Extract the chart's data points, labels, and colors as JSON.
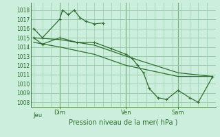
{
  "background_color": "#cceedd",
  "grid_color": "#99ccaa",
  "line_color": "#2d6e2d",
  "text_color": "#2d6e2d",
  "xlabel": "Pression niveau de la mer( hPa )",
  "yticks": [
    1008,
    1009,
    1010,
    1011,
    1012,
    1013,
    1014,
    1015,
    1016,
    1017,
    1018
  ],
  "ylim": [
    1007.5,
    1018.8
  ],
  "day_labels": [
    "Jeu",
    "Dim",
    "Ven",
    "Sam"
  ],
  "vline_positions": [
    9,
    32,
    50
  ],
  "series1_x": [
    0,
    3,
    9,
    10,
    12,
    14,
    16,
    18,
    21,
    24
  ],
  "series1_y": [
    1016,
    1015,
    1017,
    1018,
    1017.5,
    1018,
    1017.2,
    1016.8,
    1016.5,
    1016.6
  ],
  "series2_x": [
    0,
    3,
    9,
    15,
    21,
    27,
    32,
    34,
    36,
    38,
    40,
    43,
    46,
    50,
    54,
    57,
    62
  ],
  "series2_y": [
    1015,
    1014.3,
    1015,
    1014.5,
    1014.5,
    1013.8,
    1013.2,
    1012.8,
    1012.0,
    1011.2,
    1009.5,
    1008.5,
    1008.3,
    1009.3,
    1008.5,
    1008.0,
    1010.8
  ],
  "series3_x": [
    0,
    9,
    21,
    32,
    50,
    62
  ],
  "series3_y": [
    1015,
    1014.8,
    1014.2,
    1013.0,
    1011.2,
    1010.8
  ],
  "series4_x": [
    0,
    9,
    21,
    32,
    50,
    62
  ],
  "series4_y": [
    1014.5,
    1014.0,
    1013.2,
    1012.0,
    1010.8,
    1010.8
  ],
  "xlim": [
    -1,
    63
  ]
}
